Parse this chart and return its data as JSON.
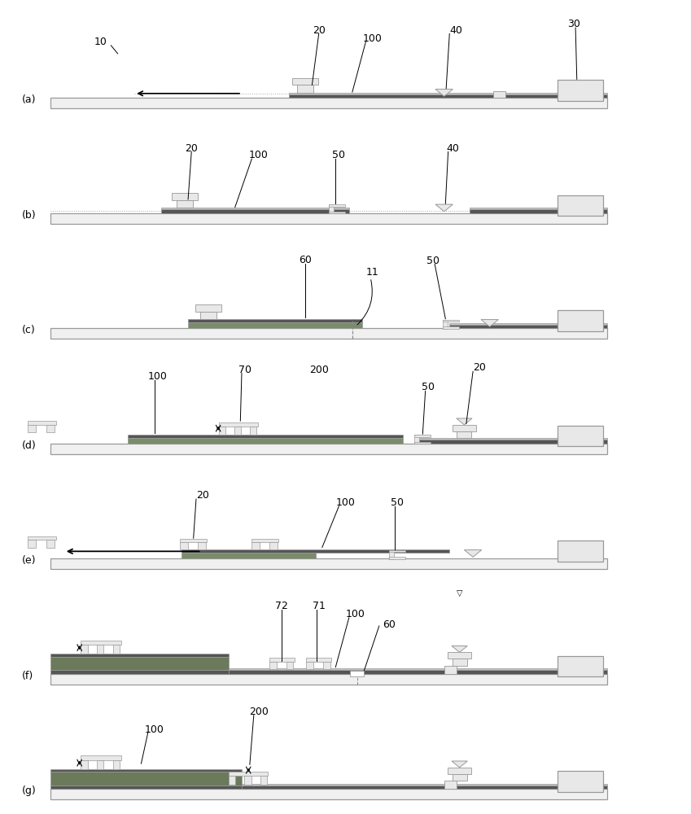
{
  "panels": [
    "(a)",
    "(b)",
    "(c)",
    "(d)",
    "(e)",
    "(f)",
    "(g)"
  ],
  "bg_color": "#ffffff",
  "light_gray": "#e8e8e8",
  "mid_gray": "#c0c0c0",
  "dark_gray": "#606060",
  "ribbon_dark": "#555555",
  "green_gray": "#7a8c6a",
  "border_color": "#999999",
  "label_color": "#111111",
  "conveyor_color": "#f0f0f0",
  "conveyor_border": "#888888"
}
